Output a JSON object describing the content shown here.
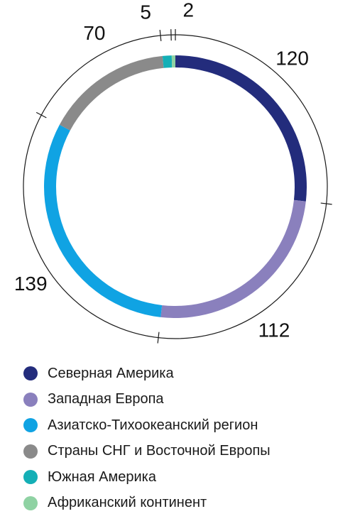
{
  "chart_data": {
    "type": "pie",
    "variant": "donut",
    "categories": [
      "Северная Америка",
      "Западная Европа",
      "Азиатско-Тихоокеанский регион",
      "Страны СНГ и Восточной Европы",
      "Южная Америка",
      "Африканский континент"
    ],
    "values": [
      120,
      112,
      139,
      70,
      5,
      2
    ],
    "value_labels": [
      "120",
      "112",
      "139",
      "70",
      "5",
      "2"
    ],
    "colors": [
      "#232c7c",
      "#8a80bd",
      "#10a3e3",
      "#8a8a8a",
      "#14afb6",
      "#8fd2a3"
    ],
    "legend_position": "bottom",
    "start_angle_deg": 0,
    "direction": "clockwise"
  }
}
